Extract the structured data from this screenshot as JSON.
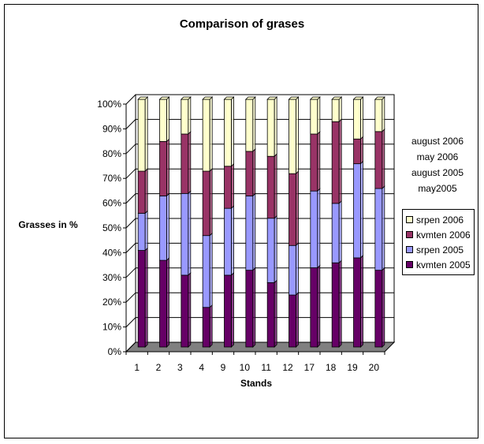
{
  "chart_data": {
    "type": "bar",
    "stacked": "percent",
    "title": "Comparison of grases",
    "xlabel": "Stands",
    "ylabel": "Grasses in %",
    "ylim": [
      0,
      100
    ],
    "ytick_labels": [
      "0%",
      "10%",
      "20%",
      "30%",
      "40%",
      "50%",
      "60%",
      "70%",
      "80%",
      "90%",
      "100%"
    ],
    "categories": [
      "1",
      "2",
      "3",
      "4",
      "9",
      "10",
      "11",
      "12",
      "17",
      "18",
      "19",
      "20"
    ],
    "series": [
      {
        "name": "kvmten  2005",
        "color": "#660066",
        "values": [
          39,
          35,
          29,
          16,
          29,
          31,
          26,
          21,
          32,
          34,
          36,
          31
        ]
      },
      {
        "name": "srpen 2005",
        "color": "#9999ff",
        "values": [
          15,
          26,
          33,
          29,
          27,
          30,
          26,
          20,
          31,
          24,
          38,
          33
        ]
      },
      {
        "name": "kvmten 2006",
        "color": "#993366",
        "values": [
          17,
          22,
          24,
          26,
          17,
          18,
          25,
          29,
          23,
          33,
          10,
          23
        ]
      },
      {
        "name": "srpen 2006",
        "color": "#ffffcc",
        "values": [
          29,
          17,
          14,
          29,
          27,
          21,
          23,
          30,
          14,
          9,
          16,
          13
        ]
      }
    ],
    "grid": true,
    "legend_position": "right",
    "side_notes": [
      "august 2006",
      "may 2006",
      "august 2005",
      "may2005"
    ]
  }
}
